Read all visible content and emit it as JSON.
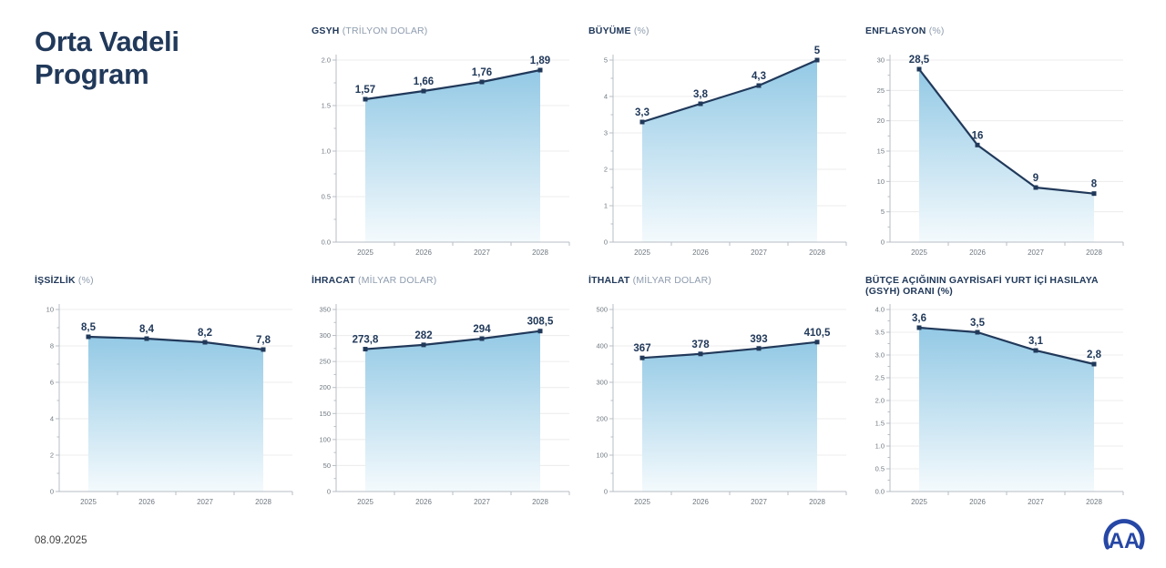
{
  "page": {
    "title": "Orta Vadeli Program",
    "date": "08.09.2025",
    "logo_text": "AA"
  },
  "colors": {
    "navy": "#21395a",
    "unit_gray": "#8e9cae",
    "tick": "#6f7880",
    "grid": "#ececec",
    "axis": "#b7bec4",
    "fill_top": "#93c9e5",
    "fill_bottom": "#f4fafd",
    "logo_blue": "#2647a5"
  },
  "chart_data": [
    {
      "type": "area",
      "title": "GSYH",
      "unit": "(TRİLYON DOLAR)",
      "categories": [
        "2025",
        "2026",
        "2027",
        "2028"
      ],
      "values": [
        1.57,
        1.66,
        1.76,
        1.89
      ],
      "point_labels": [
        "1,57",
        "1,66",
        "1,76",
        "1,89"
      ],
      "ylim": [
        0,
        2
      ],
      "yticks": [
        0,
        0.5,
        1,
        1.5,
        2
      ],
      "ytick_labels": [
        "0.0",
        "0.5",
        "1.0",
        "1.5",
        "2.0"
      ],
      "grid": true,
      "legend": "none"
    },
    {
      "type": "area",
      "title": "BÜYÜME",
      "unit": "(%)",
      "categories": [
        "2025",
        "2026",
        "2027",
        "2028"
      ],
      "values": [
        3.3,
        3.8,
        4.3,
        5
      ],
      "point_labels": [
        "3,3",
        "3,8",
        "4,3",
        "5"
      ],
      "ylim": [
        0,
        5
      ],
      "yticks": [
        0,
        1,
        2,
        3,
        4,
        5
      ],
      "ytick_labels": [
        "0",
        "1",
        "2",
        "3",
        "4",
        "5"
      ],
      "grid": true,
      "legend": "none"
    },
    {
      "type": "area",
      "title": "ENFLASYON",
      "unit": "(%)",
      "categories": [
        "2025",
        "2026",
        "2027",
        "2028"
      ],
      "values": [
        28.5,
        16,
        9,
        8
      ],
      "point_labels": [
        "28,5",
        "16",
        "9",
        "8"
      ],
      "ylim": [
        0,
        30
      ],
      "yticks": [
        0,
        5,
        10,
        15,
        20,
        25,
        30
      ],
      "ytick_labels": [
        "0",
        "5",
        "10",
        "15",
        "20",
        "25",
        "30"
      ],
      "grid": true,
      "legend": "none"
    },
    {
      "type": "area",
      "title": "İŞSİZLİK",
      "unit": "(%)",
      "categories": [
        "2025",
        "2026",
        "2027",
        "2028"
      ],
      "values": [
        8.5,
        8.4,
        8.2,
        7.8
      ],
      "point_labels": [
        "8,5",
        "8,4",
        "8,2",
        "7,8"
      ],
      "ylim": [
        0,
        10
      ],
      "yticks": [
        0,
        2,
        4,
        6,
        8,
        10
      ],
      "ytick_labels": [
        "0",
        "2",
        "4",
        "6",
        "8",
        "10"
      ],
      "grid": true,
      "legend": "none"
    },
    {
      "type": "area",
      "title": "İHRACAT",
      "unit": "(MİLYAR DOLAR)",
      "categories": [
        "2025",
        "2026",
        "2027",
        "2028"
      ],
      "values": [
        273.8,
        282,
        294,
        308.5
      ],
      "point_labels": [
        "273,8",
        "282",
        "294",
        "308,5"
      ],
      "ylim": [
        0,
        350
      ],
      "yticks": [
        0,
        50,
        100,
        150,
        200,
        250,
        300,
        350
      ],
      "ytick_labels": [
        "0",
        "50",
        "100",
        "150",
        "200",
        "250",
        "300",
        "350"
      ],
      "grid": true,
      "legend": "none"
    },
    {
      "type": "area",
      "title": "İTHALAT",
      "unit": "(MİLYAR DOLAR)",
      "categories": [
        "2025",
        "2026",
        "2027",
        "2028"
      ],
      "values": [
        367,
        378,
        393,
        410.5
      ],
      "point_labels": [
        "367",
        "378",
        "393",
        "410,5"
      ],
      "ylim": [
        0,
        500
      ],
      "yticks": [
        0,
        100,
        200,
        300,
        400,
        500
      ],
      "ytick_labels": [
        "0",
        "100",
        "200",
        "300",
        "400",
        "500"
      ],
      "grid": true,
      "legend": "none"
    },
    {
      "type": "area",
      "title": "BÜTÇE AÇIĞININ GAYRİSAFİ YURT İÇİ HASILAYA (GSYH) ORANI (%)",
      "unit": "",
      "categories": [
        "2025",
        "2026",
        "2027",
        "2028"
      ],
      "values": [
        3.6,
        3.5,
        3.1,
        2.8
      ],
      "point_labels": [
        "3,6",
        "3,5",
        "3,1",
        "2,8"
      ],
      "ylim": [
        0,
        4
      ],
      "yticks": [
        0,
        0.5,
        1,
        1.5,
        2,
        2.5,
        3,
        3.5,
        4
      ],
      "ytick_labels": [
        "0.0",
        "0.5",
        "1.0",
        "1.5",
        "2.0",
        "2.5",
        "3.0",
        "3.5",
        "4.0"
      ],
      "grid": true,
      "legend": "none"
    }
  ]
}
